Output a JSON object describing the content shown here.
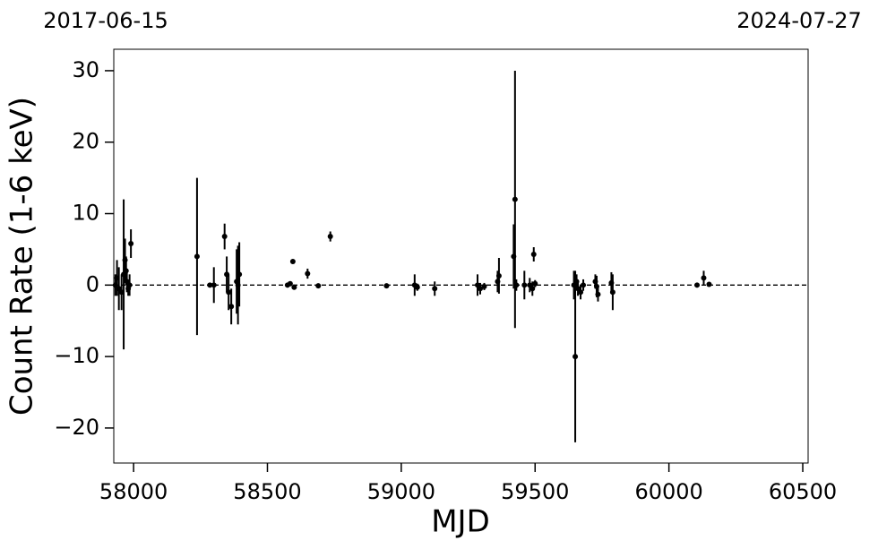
{
  "chart_data": {
    "type": "errorbar-scatter",
    "top_labels": [
      "2017-06-15",
      "2024-07-27"
    ],
    "xlabel": "MJD",
    "ylabel": "Count Rate (1-6 keV)",
    "xlim": [
      57926,
      60520
    ],
    "ylim": [
      -24.9,
      33.0
    ],
    "xticks": [
      58000,
      58500,
      59000,
      59500,
      60000,
      60500
    ],
    "yticks": [
      {
        "value": -20,
        "label": "−20"
      },
      {
        "value": -10,
        "label": "−10"
      },
      0,
      10,
      20,
      30
    ],
    "hline": 0,
    "color": "#000000",
    "series": [
      {
        "name": "data",
        "x": [
          57932,
          57938,
          57945,
          57955,
          57963,
          57968,
          57972,
          57975,
          57980,
          57985,
          57990,
          58237,
          58285,
          58300,
          58340,
          58348,
          58355,
          58365,
          58385,
          58390,
          58395,
          58575,
          58585,
          58595,
          58600,
          58650,
          58690,
          58735,
          58945,
          59050,
          59060,
          59125,
          59285,
          59295,
          59310,
          59360,
          59365,
          59420,
          59425,
          59430,
          59460,
          59480,
          59490,
          59495,
          59500,
          59645,
          59650,
          59655,
          59660,
          59670,
          59680,
          59725,
          59730,
          59735,
          59785,
          59790,
          60105,
          60130,
          60150
        ],
        "values": [
          0,
          1,
          -0.5,
          -1,
          1.5,
          3.5,
          2,
          0.5,
          -0.5,
          0,
          5.8,
          4,
          0,
          0,
          6.8,
          1.5,
          -1,
          -3,
          0.5,
          0,
          1.5,
          0,
          0.2,
          3.3,
          -0.3,
          1.6,
          -0.1,
          6.8,
          -0.1,
          0,
          -0.3,
          -0.5,
          0,
          -0.5,
          -0.2,
          0.5,
          1.3,
          4,
          12,
          0,
          0,
          0,
          -0.5,
          4.3,
          0.2,
          0,
          -10,
          0.5,
          -0.5,
          -1,
          0,
          0.5,
          -0.2,
          -1.3,
          0.3,
          -1,
          0,
          1,
          0.1
        ],
        "errors": [
          1.5,
          2.5,
          3,
          2.5,
          10.5,
          3,
          2,
          1.5,
          1,
          1.5,
          2,
          11,
          0.3,
          2.5,
          1.8,
          2.5,
          2.5,
          2.5,
          4.5,
          5.5,
          4.5,
          0.3,
          0.3,
          0.3,
          0.3,
          0.7,
          0.3,
          0.7,
          0.3,
          1.5,
          0.5,
          1,
          1.5,
          0.8,
          0.5,
          1.5,
          2.5,
          4.5,
          18,
          0.8,
          2,
          1,
          1,
          1,
          0.5,
          2,
          12,
          1,
          1,
          1,
          0.8,
          1,
          1.5,
          1,
          1.5,
          2.5,
          0.3,
          1,
          0.3
        ]
      }
    ]
  }
}
